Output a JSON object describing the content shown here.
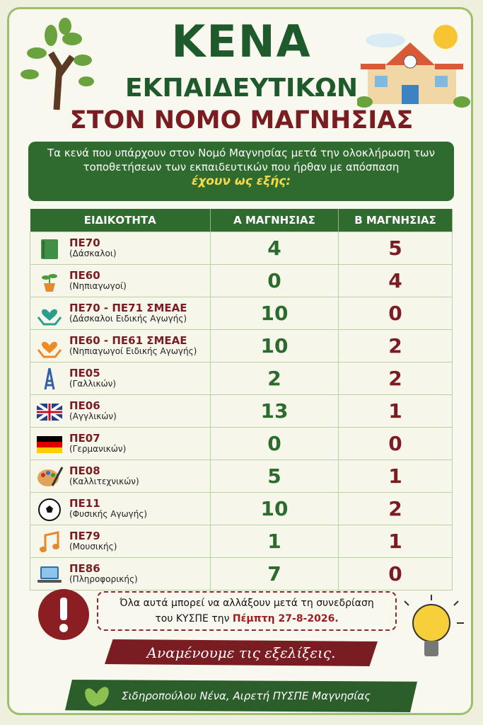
{
  "header": {
    "title": "ΚΕΝΑ",
    "subtitle": "ΕΚΠΑΙΔΕΥΤΙΚΩΝ",
    "region": "ΣΤΟΝ ΝΟΜΟ ΜΑΓΝΗΣΙΑΣ"
  },
  "intro": {
    "text": "Τα κενά που υπάρχουν στον Νομό Μαγνησίας μετά την ολοκλήρωση των τοποθετήσεων των εκπαιδευτικών που ήρθαν με απόσπαση",
    "highlight": "έχουν ως εξής:"
  },
  "table": {
    "columns": [
      "ΕΙΔΙΚΟΤΗΤΑ",
      "Α ΜΑΓΝΗΣΙΑΣ",
      "Β ΜΑΓΝΗΣΙΑΣ"
    ],
    "rows": [
      [
        "ΠΕ70",
        "(Δάσκαλοι)",
        4,
        5
      ],
      [
        "ΠΕ60",
        "(Νηπιαγωγοί)",
        0,
        4
      ],
      [
        "ΠΕ70 - ΠΕ71 ΣΜΕΑΕ",
        "(Δάσκαλοι Ειδικής Αγωγής)",
        10,
        0
      ],
      [
        "ΠΕ60 - ΠΕ61 ΣΜΕΑΕ",
        "(Νηπιαγωγοί Ειδικής Αγωγής)",
        10,
        2
      ],
      [
        "ΠΕ05",
        "(Γαλλικών)",
        2,
        2
      ],
      [
        "ΠΕ06",
        "(Αγγλικών)",
        13,
        1
      ],
      [
        "ΠΕ07",
        "(Γερμανικών)",
        0,
        0
      ],
      [
        "ΠΕ08",
        "(Καλλιτεχνικών)",
        5,
        1
      ],
      [
        "ΠΕ11",
        "(Φυσικής Αγωγής)",
        10,
        2
      ],
      [
        "ΠΕ79",
        "(Μουσικής)",
        1,
        1
      ],
      [
        "ΠΕ86",
        "(Πληροφορικής)",
        7,
        0
      ]
    ]
  },
  "notice": {
    "text": "Όλα αυτά μπορεί να αλλάξουν μετά τη συνεδρίαση",
    "text2": "του ΚΥΣΠΕ την",
    "highlight": "Πέμπτη 27-8-2026."
  },
  "banner": "Αναμένουμε τις εξελίξεις.",
  "footer": "Σιδηροπούλου Νένα, Αιρετή ΠΥΣΠΕ Μαγνησίας"
}
